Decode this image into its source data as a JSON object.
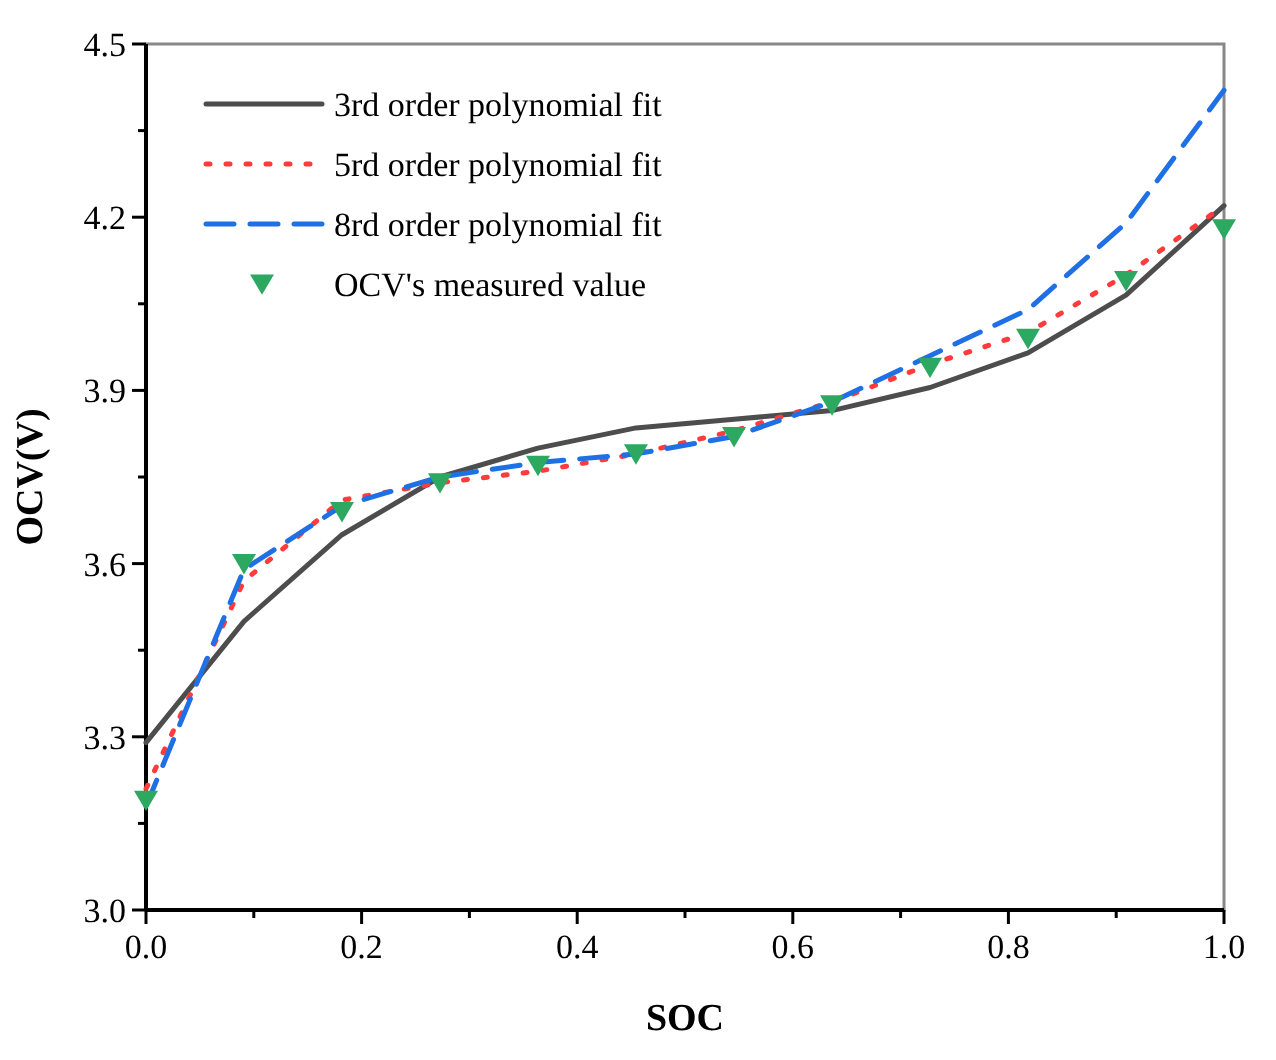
{
  "chart_data": {
    "type": "line",
    "xlabel": "SOC",
    "ylabel": "OCV(V)",
    "x": [
      0,
      0.0909,
      0.1818,
      0.2727,
      0.3636,
      0.4545,
      0.5455,
      0.6364,
      0.7273,
      0.8182,
      0.9091,
      1.0
    ],
    "series": [
      {
        "name": "3rd order polynomial fit",
        "color": "#4d4d4d",
        "line_style": "solid",
        "values": [
          3.29,
          3.5,
          3.65,
          3.75,
          3.8,
          3.835,
          3.85,
          3.865,
          3.905,
          3.965,
          4.065,
          4.22
        ]
      },
      {
        "name": "5rd order polynomial fit",
        "color": "#ff3b3b",
        "line_style": "dotted",
        "values": [
          3.21,
          3.57,
          3.71,
          3.74,
          3.76,
          3.79,
          3.83,
          3.88,
          3.945,
          4.0,
          4.1,
          4.22
        ]
      },
      {
        "name": "8rd order polynomial fit",
        "color": "#1f6fe5",
        "line_style": "dashed",
        "values": [
          3.18,
          3.59,
          3.7,
          3.75,
          3.775,
          3.79,
          3.82,
          3.88,
          3.96,
          4.04,
          4.19,
          4.42
        ]
      },
      {
        "name": "OCV's measured value",
        "type": "scatter",
        "color": "#2ca861",
        "marker": "triangle",
        "values": [
          3.19,
          3.6,
          3.69,
          3.74,
          3.77,
          3.79,
          3.82,
          3.875,
          3.94,
          3.99,
          4.09,
          4.18
        ]
      }
    ],
    "xlim": [
      0,
      1
    ],
    "xticks": [
      {
        "value": 0,
        "label": "0.0"
      },
      {
        "value": 0.1,
        "label": null
      },
      {
        "value": 0.2,
        "label": "0.2"
      },
      {
        "value": 0.3,
        "label": null
      },
      {
        "value": 0.4,
        "label": "0.4"
      },
      {
        "value": 0.5,
        "label": null
      },
      {
        "value": 0.6,
        "label": "0.6"
      },
      {
        "value": 0.7,
        "label": null
      },
      {
        "value": 0.8,
        "label": "0.8"
      },
      {
        "value": 0.9,
        "label": null
      },
      {
        "value": 1,
        "label": "1.0"
      }
    ],
    "ylim": [
      3,
      4.5
    ],
    "yticks": [
      {
        "value": 3,
        "label": "3.0"
      },
      {
        "value": 3.15,
        "label": null
      },
      {
        "value": 3.3,
        "label": "3.3"
      },
      {
        "value": 3.45,
        "label": null
      },
      {
        "value": 3.6,
        "label": "3.6"
      },
      {
        "value": 3.75,
        "label": null
      },
      {
        "value": 3.9,
        "label": "3.9"
      },
      {
        "value": 4.05,
        "label": null
      },
      {
        "value": 4.2,
        "label": "4.2"
      },
      {
        "value": 4.35,
        "label": null
      },
      {
        "value": 4.5,
        "label": "4.5"
      }
    ],
    "grid": false,
    "legend": "top left"
  }
}
